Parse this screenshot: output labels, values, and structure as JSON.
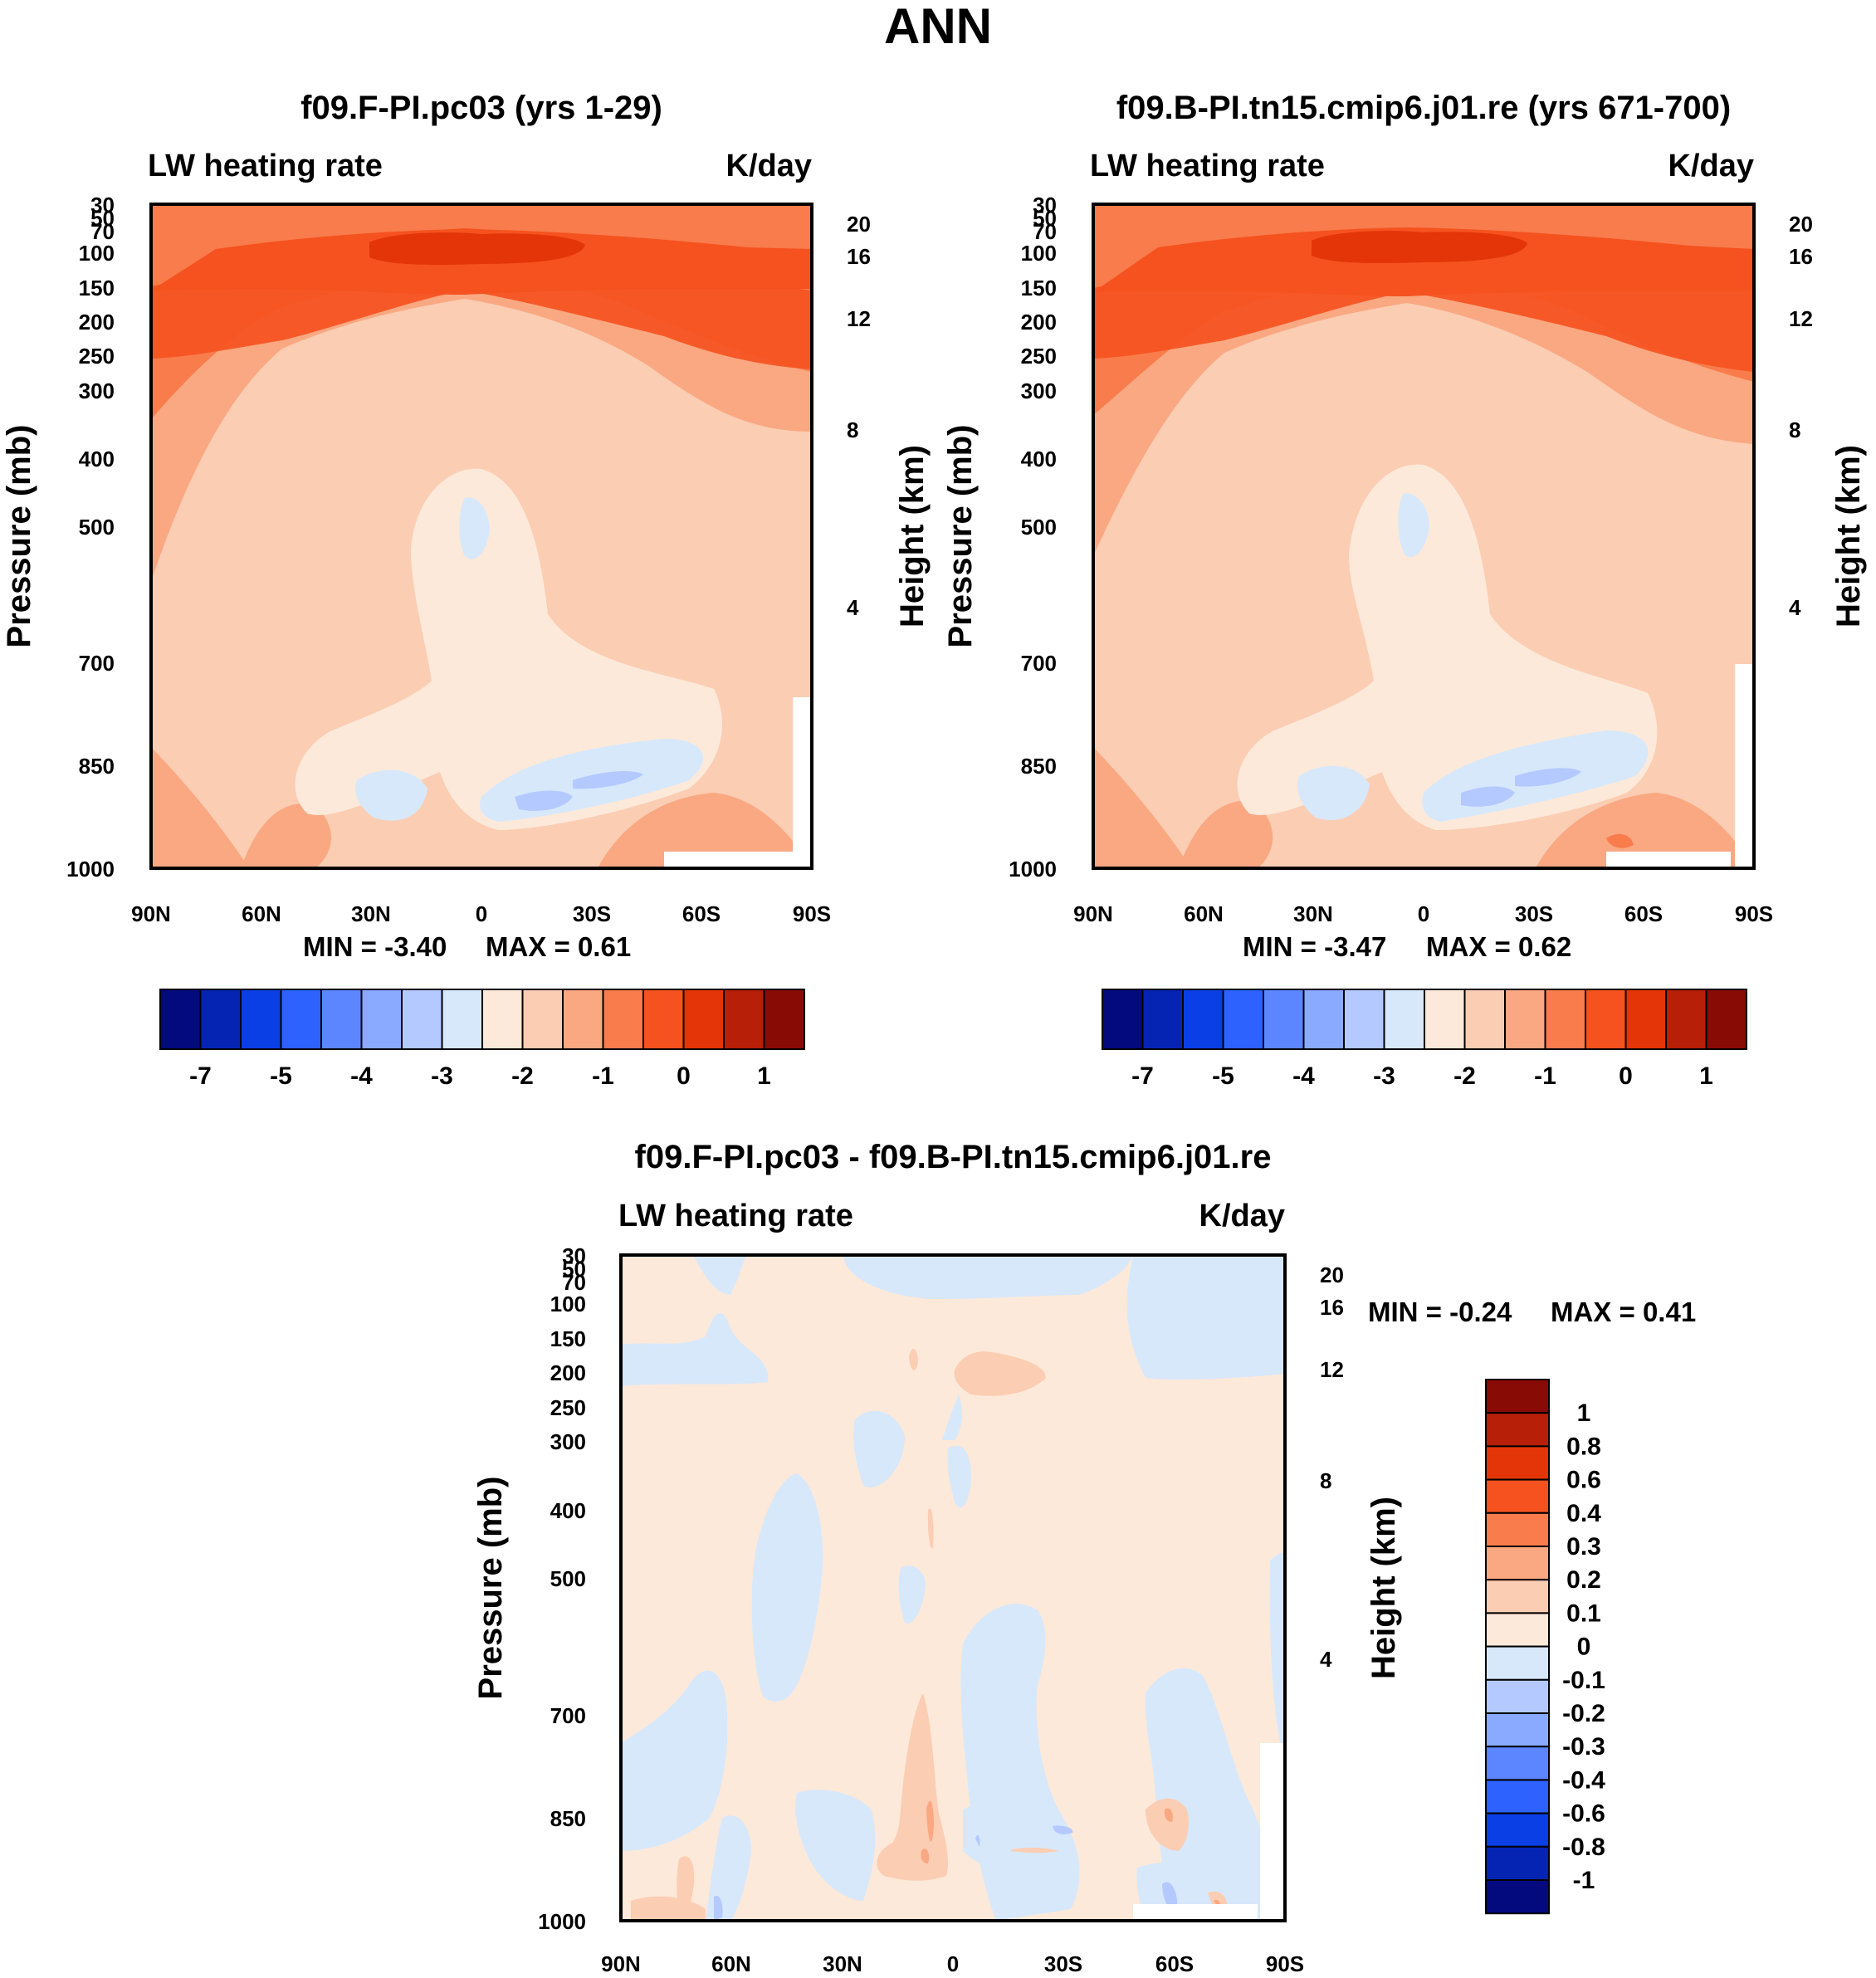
{
  "figure_title": "ANN",
  "colors": {
    "main_scale": [
      "#030a7d",
      "#0524b4",
      "#0a3fe6",
      "#2d62ff",
      "#5b86ff",
      "#8aaaff",
      "#b4c9ff",
      "#d7e8fb",
      "#fde9d9",
      "#fbcdb3",
      "#f9a882",
      "#f87c4c",
      "#f5521f",
      "#e33508",
      "#b71f08",
      "#890b06"
    ],
    "diff_scale": [
      "#030a7d",
      "#0524b4",
      "#0a3fe6",
      "#2d62ff",
      "#5b86ff",
      "#8aaaff",
      "#b4c9ff",
      "#d7e8fb",
      "#fde9d9",
      "#fbcdb3",
      "#f9a882",
      "#f87c4c",
      "#f5521f",
      "#e33508",
      "#b71f08",
      "#890b06"
    ]
  },
  "chart_data": [
    {
      "type": "heatmap",
      "title": "f09.F-PI.pc03 (yrs 1-29)",
      "left_label": "LW heating rate",
      "right_label": "K/day",
      "ylabel": "Pressure (mb)",
      "ylabel_right": "Height (km)",
      "x_ticks": [
        "90N",
        "60N",
        "30N",
        "0",
        "30S",
        "60S",
        "90S"
      ],
      "y_ticks": [
        "30",
        "50",
        "70",
        "100",
        "150",
        "200",
        "250",
        "300",
        "400",
        "500",
        "700",
        "850",
        "1000"
      ],
      "right_ticks": [
        "20",
        "16",
        "12",
        "8",
        "4"
      ],
      "ylim": [
        1000,
        30
      ],
      "min_text": "MIN =  -3.40",
      "max_text": "MAX =   0.61",
      "levels": [
        -7.5,
        -7,
        -6,
        -5,
        -4.5,
        -4,
        -3.5,
        -3,
        -2.5,
        -2,
        -1.5,
        -1,
        -0.5,
        0,
        0.5,
        1
      ],
      "colorbar_labels": [
        "-7",
        "-5",
        "-4",
        "-3",
        "-2",
        "-1",
        "0",
        "1"
      ]
    },
    {
      "type": "heatmap",
      "title": "f09.B-PI.tn15.cmip6.j01.re (yrs 671-700)",
      "left_label": "LW heating rate",
      "right_label": "K/day",
      "ylabel": "Pressure (mb)",
      "ylabel_right": "Height (km)",
      "x_ticks": [
        "90N",
        "60N",
        "30N",
        "0",
        "30S",
        "60S",
        "90S"
      ],
      "y_ticks": [
        "30",
        "50",
        "70",
        "100",
        "150",
        "200",
        "250",
        "300",
        "400",
        "500",
        "700",
        "850",
        "1000"
      ],
      "right_ticks": [
        "20",
        "16",
        "12",
        "8",
        "4"
      ],
      "ylim": [
        1000,
        30
      ],
      "min_text": "MIN =  -3.47",
      "max_text": "MAX =   0.62",
      "levels": [
        -7.5,
        -7,
        -6,
        -5,
        -4.5,
        -4,
        -3.5,
        -3,
        -2.5,
        -2,
        -1.5,
        -1,
        -0.5,
        0,
        0.5,
        1
      ],
      "colorbar_labels": [
        "-7",
        "-5",
        "-4",
        "-3",
        "-2",
        "-1",
        "0",
        "1"
      ]
    },
    {
      "type": "heatmap",
      "title": "f09.F-PI.pc03 - f09.B-PI.tn15.cmip6.j01.re",
      "left_label": "LW heating rate",
      "right_label": "K/day",
      "ylabel": "Pressure (mb)",
      "ylabel_right": "Height (km)",
      "x_ticks": [
        "90N",
        "60N",
        "30N",
        "0",
        "30S",
        "60S",
        "90S"
      ],
      "y_ticks": [
        "30",
        "50",
        "70",
        "100",
        "150",
        "200",
        "250",
        "300",
        "400",
        "500",
        "700",
        "850",
        "1000"
      ],
      "right_ticks": [
        "20",
        "16",
        "12",
        "8",
        "4"
      ],
      "ylim": [
        1000,
        30
      ],
      "min_text": "MIN =  -0.24",
      "max_text": "MAX =   0.41",
      "colorbar_labels": [
        "1",
        "0.8",
        "0.6",
        "0.4",
        "0.3",
        "0.2",
        "0.1",
        "0",
        "-0.1",
        "-0.2",
        "-0.3",
        "-0.4",
        "-0.6",
        "-0.8",
        "-1"
      ]
    }
  ]
}
